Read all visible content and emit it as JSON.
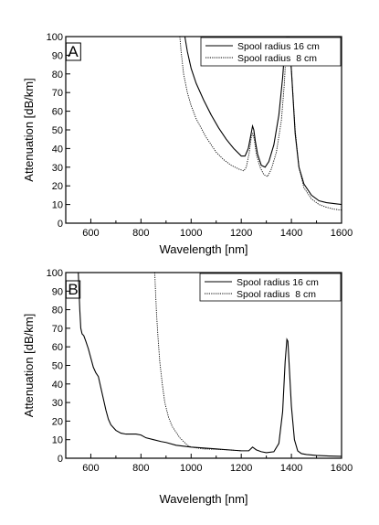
{
  "chart_data": [
    {
      "type": "line",
      "panel_label": "A",
      "xlabel": "Wavelength [nm]",
      "ylabel": "Attenuation [dB/km]",
      "xlim": [
        500,
        1600
      ],
      "ylim": [
        0,
        100
      ],
      "xticks": [
        600,
        800,
        1000,
        1200,
        1400,
        1600
      ],
      "yticks": [
        0,
        10,
        20,
        30,
        40,
        50,
        60,
        70,
        80,
        90,
        100
      ],
      "grid": false,
      "legend_position": "top-right",
      "series": [
        {
          "name": "Spool radius 16 cm",
          "style": "solid",
          "x": [
            975,
            985,
            1000,
            1020,
            1050,
            1080,
            1110,
            1140,
            1170,
            1200,
            1215,
            1228,
            1238,
            1245,
            1250,
            1256,
            1265,
            1280,
            1295,
            1310,
            1330,
            1350,
            1365,
            1375,
            1382,
            1385,
            1390,
            1400,
            1415,
            1430,
            1450,
            1480,
            1510,
            1540,
            1570,
            1600
          ],
          "y": [
            100,
            92,
            83,
            75,
            66,
            58,
            51,
            45,
            40,
            36,
            36,
            40,
            47,
            52,
            50,
            44,
            37,
            31,
            30,
            33,
            42,
            58,
            78,
            96,
            100,
            100,
            100,
            82,
            48,
            30,
            21,
            15,
            12,
            11,
            10.5,
            10
          ]
        },
        {
          "name": "Spool radius  8 cm",
          "style": "dotted",
          "x": [
            955,
            960,
            970,
            985,
            1000,
            1020,
            1040,
            1060,
            1080,
            1100,
            1130,
            1160,
            1190,
            1210,
            1220,
            1232,
            1240,
            1246,
            1252,
            1260,
            1275,
            1290,
            1305,
            1320,
            1340,
            1360,
            1372,
            1380,
            1383,
            1389,
            1400,
            1415,
            1430,
            1450,
            1480,
            1510,
            1540,
            1570,
            1600
          ],
          "y": [
            100,
            92,
            80,
            70,
            63,
            56,
            51,
            46,
            42,
            38,
            34,
            31,
            29,
            28,
            30,
            38,
            46,
            48,
            45,
            37,
            30,
            26,
            25,
            29,
            38,
            55,
            75,
            96,
            100,
            100,
            82,
            50,
            30,
            19,
            13,
            10,
            8.5,
            7.5,
            7
          ]
        }
      ]
    },
    {
      "type": "line",
      "panel_label": "B",
      "xlabel": "Wavelength [nm]",
      "ylabel": "Attenuation [dB/km]",
      "xlim": [
        500,
        1600
      ],
      "ylim": [
        0,
        100
      ],
      "xticks": [
        600,
        800,
        1000,
        1200,
        1400,
        1600
      ],
      "yticks": [
        0,
        10,
        20,
        30,
        40,
        50,
        60,
        70,
        80,
        90,
        100
      ],
      "grid": false,
      "legend_position": "top-right",
      "series": [
        {
          "name": "Spool radius 16 cm",
          "style": "solid",
          "x": [
            550,
            553,
            556,
            560,
            565,
            572,
            580,
            590,
            600,
            610,
            620,
            630,
            640,
            650,
            660,
            670,
            680,
            700,
            720,
            740,
            760,
            780,
            800,
            820,
            850,
            880,
            900,
            940,
            1000,
            1050,
            1100,
            1150,
            1200,
            1230,
            1245,
            1260,
            1280,
            1300,
            1330,
            1350,
            1365,
            1375,
            1382,
            1386,
            1392,
            1400,
            1412,
            1425,
            1440,
            1460,
            1500,
            1550,
            1600
          ],
          "y": [
            100,
            90,
            80,
            70,
            67,
            66,
            63,
            59,
            54,
            49,
            46,
            44,
            38,
            32,
            26,
            21,
            18,
            15,
            13.5,
            13,
            13,
            13,
            12.5,
            11,
            10,
            9,
            8.5,
            7,
            6,
            5.5,
            5,
            4.5,
            4,
            4,
            6,
            4.5,
            3.5,
            3,
            3.5,
            8,
            25,
            52,
            64,
            63,
            48,
            28,
            10,
            4,
            2.5,
            2,
            1.5,
            1.2,
            1
          ]
        },
        {
          "name": "Spool radius  8 cm",
          "style": "dotted",
          "x": [
            855,
            858,
            862,
            868,
            875,
            885,
            895,
            910,
            925,
            940,
            955,
            970,
            985,
            1000,
            1050,
            1100,
            1150,
            1200
          ],
          "y": [
            100,
            90,
            78,
            65,
            52,
            40,
            30,
            22,
            17,
            14,
            11,
            9,
            7,
            6,
            5,
            4.8,
            4.5,
            4
          ]
        }
      ]
    }
  ]
}
